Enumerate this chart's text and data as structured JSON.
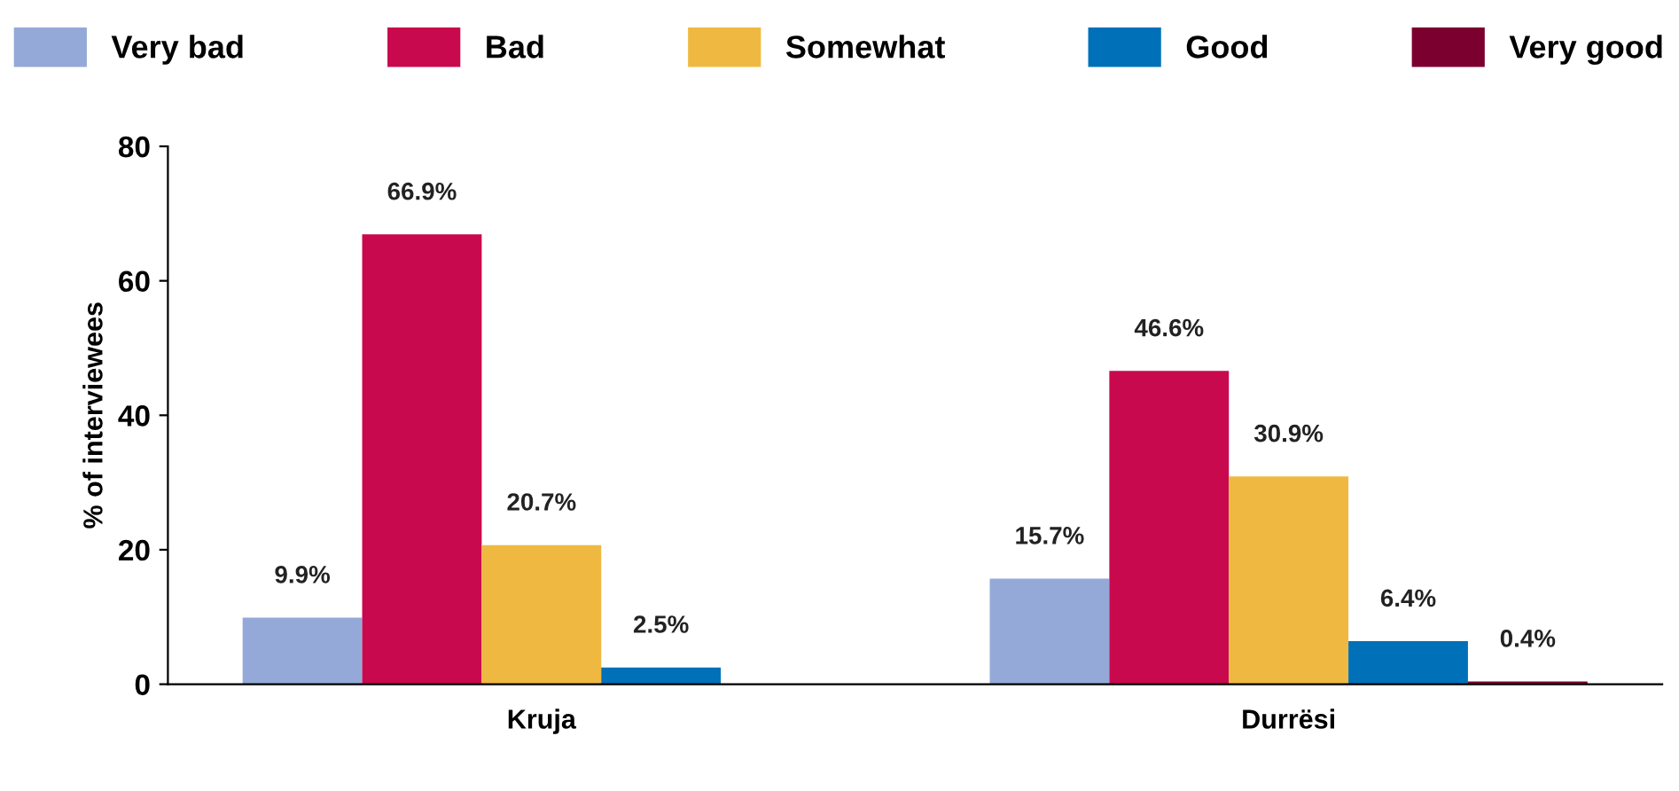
{
  "chart_data": {
    "type": "bar",
    "ylabel": "% of interviewees",
    "categories": [
      "Kruja",
      "Durrësi"
    ],
    "series": [
      {
        "name": "Very bad",
        "color": "#94a9d8",
        "values": [
          9.9,
          15.7
        ],
        "value_labels": [
          "9.9%",
          "15.7%"
        ]
      },
      {
        "name": "Bad",
        "color": "#c8094e",
        "values": [
          66.9,
          46.6
        ],
        "value_labels": [
          "66.9%",
          "46.6%"
        ]
      },
      {
        "name": "Somewhat",
        "color": "#efb941",
        "values": [
          20.7,
          30.9
        ],
        "value_labels": [
          "20.7%",
          "30.9%"
        ]
      },
      {
        "name": "Good",
        "color": "#0070b8",
        "values": [
          2.5,
          6.4
        ],
        "value_labels": [
          "2.5%",
          "6.4%"
        ]
      },
      {
        "name": "Very good",
        "color": "#7b0030",
        "values": [
          null,
          0.4
        ],
        "value_labels": [
          null,
          "0.4%"
        ]
      }
    ],
    "ylim": [
      0,
      80
    ],
    "yticks": [
      0,
      20,
      40,
      60,
      80
    ],
    "grid": false,
    "legend": "top"
  }
}
